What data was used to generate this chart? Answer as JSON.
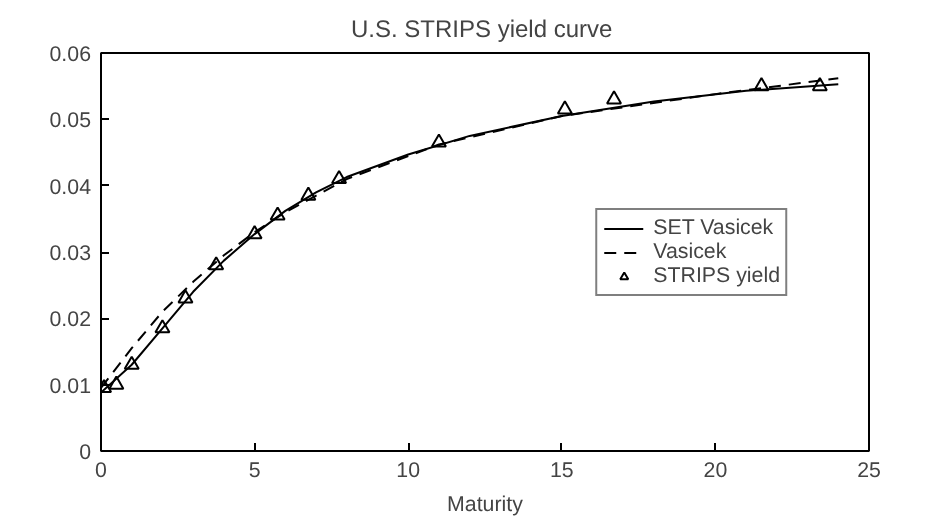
{
  "chart_data": {
    "type": "line",
    "title": "U.S. STRIPS  yield curve",
    "xlabel": "Maturity",
    "xlim": [
      0,
      25
    ],
    "xticks": [
      0,
      5,
      10,
      15,
      20,
      25
    ],
    "ylim": [
      0,
      0.06
    ],
    "yticks": [
      0,
      0.01,
      0.02,
      0.03,
      0.04,
      0.05,
      0.06
    ],
    "grid": false,
    "legend": "right",
    "series": [
      {
        "name": "SET Vasicek",
        "color": "#000000",
        "line_style": "solid",
        "marker": "none",
        "x": [
          0,
          1,
          2,
          3,
          4,
          5,
          6,
          7,
          8,
          10,
          12,
          15,
          18,
          21,
          24
        ],
        "values": [
          0.0088,
          0.013,
          0.0185,
          0.024,
          0.0287,
          0.0327,
          0.0362,
          0.039,
          0.0413,
          0.0447,
          0.0475,
          0.0505,
          0.0527,
          0.0543,
          0.0553
        ]
      },
      {
        "name": "Vasicek",
        "color": "#000000",
        "line_style": "dashed",
        "marker": "none",
        "x": [
          0,
          1,
          2,
          3,
          4,
          5,
          6,
          8,
          11,
          15,
          20,
          24
        ],
        "values": [
          0.0095,
          0.0155,
          0.021,
          0.0255,
          0.0295,
          0.033,
          0.036,
          0.041,
          0.0462,
          0.0505,
          0.0538,
          0.0562
        ]
      },
      {
        "name": "STRIPS yield",
        "type": "scatter",
        "color": "#000000",
        "marker": "triangle",
        "x": [
          0.1,
          0.5,
          1,
          2,
          2.75,
          3.75,
          5,
          5.75,
          6.75,
          7.75,
          11,
          15.1,
          16.7,
          21.5,
          23.4
        ],
        "values": [
          0.0095,
          0.01,
          0.013,
          0.0185,
          0.023,
          0.028,
          0.0327,
          0.0355,
          0.0385,
          0.041,
          0.0465,
          0.0515,
          0.053,
          0.055,
          0.055
        ]
      }
    ]
  }
}
